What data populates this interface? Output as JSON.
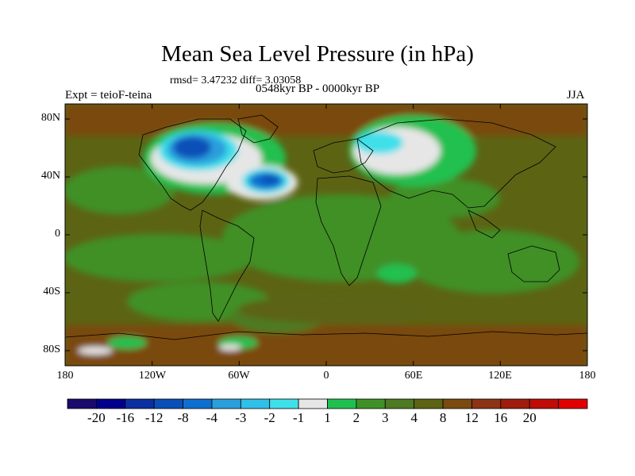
{
  "title": "Mean Sea Level Pressure (in hPa)",
  "stats": "rmsd= 3.47232 diff= 3.03058",
  "experiment": "Expt = teioF-teina",
  "period": "0548kyr BP - 0000kyr BP",
  "season": "JJA",
  "lat_ticks": [
    "80N",
    "40N",
    "0",
    "40S",
    "80S"
  ],
  "lon_ticks": [
    "180",
    "120W",
    "60W",
    "0",
    "60E",
    "120E",
    "180"
  ],
  "colorbar": {
    "colors": [
      "#1a0a6e",
      "#00008c",
      "#0a2fa0",
      "#0a4fb8",
      "#0f6fd0",
      "#2a9fdc",
      "#30c0e8",
      "#40e0ea",
      "#e6e6e6",
      "#20c050",
      "#409028",
      "#4e7a22",
      "#5c6414",
      "#7a4a10",
      "#8c3414",
      "#a01c0c",
      "#c00c06",
      "#e00000"
    ],
    "labels": [
      "-20",
      "-16",
      "-12",
      "-8",
      "-4",
      "-3",
      "-2",
      "-1",
      "1",
      "2",
      "3",
      "4",
      "8",
      "12",
      "16",
      "20"
    ]
  }
}
